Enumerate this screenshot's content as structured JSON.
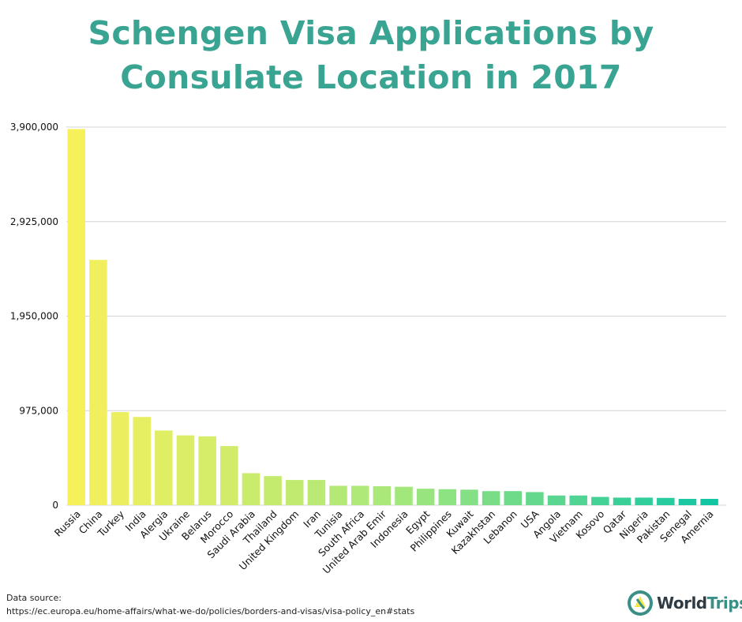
{
  "chart_data": {
    "type": "bar",
    "title": "Schengen Visa Applications by Consulate Location in 2017",
    "title_lines": [
      "Schengen Visa Applications by",
      "Consulate Location in 2017"
    ],
    "xlabel": "",
    "ylabel": "",
    "ylim": [
      0,
      3900000
    ],
    "yticks": [
      0,
      975000,
      1950000,
      2925000,
      3900000
    ],
    "ytick_labels": [
      "0",
      "975,000",
      "1,950,000",
      "2,925,000",
      "3,900,000"
    ],
    "grid": true,
    "categories": [
      "Russia",
      "China",
      "Turkey",
      "India",
      "Alergia",
      "Ukraine",
      "Belarus",
      "Morocco",
      "Saudi Arabia",
      "Thailand",
      "United Kingdom",
      "Iran",
      "Tunisia",
      "South Africa",
      "United Arab Emir",
      "Indonesia",
      "Egypt",
      "Philippines",
      "Kuwait",
      "Kazakhstan",
      "Lebanon",
      "USA",
      "Angola",
      "Vietnam",
      "Kosovo",
      "Qatar",
      "Nigeria",
      "Pakistan",
      "Senegal",
      "Amernia"
    ],
    "values": [
      3880000,
      2530000,
      960000,
      910000,
      770000,
      720000,
      710000,
      610000,
      330000,
      300000,
      260000,
      260000,
      200000,
      200000,
      195000,
      190000,
      170000,
      165000,
      160000,
      145000,
      145000,
      135000,
      100000,
      100000,
      85000,
      78000,
      78000,
      75000,
      65000,
      65000
    ],
    "color_start": "#f6f05b",
    "color_mid": "#a7e87a",
    "color_end": "#12c6a4"
  },
  "source": {
    "label": "Data source:",
    "url": "https://ec.europa.eu/home-affairs/what-we-do/policies/borders-and-visas/visa-policy_en#stats"
  },
  "logo": {
    "icon": "worldtrips-logo-icon",
    "text_a": "World",
    "text_b": "Trips"
  }
}
